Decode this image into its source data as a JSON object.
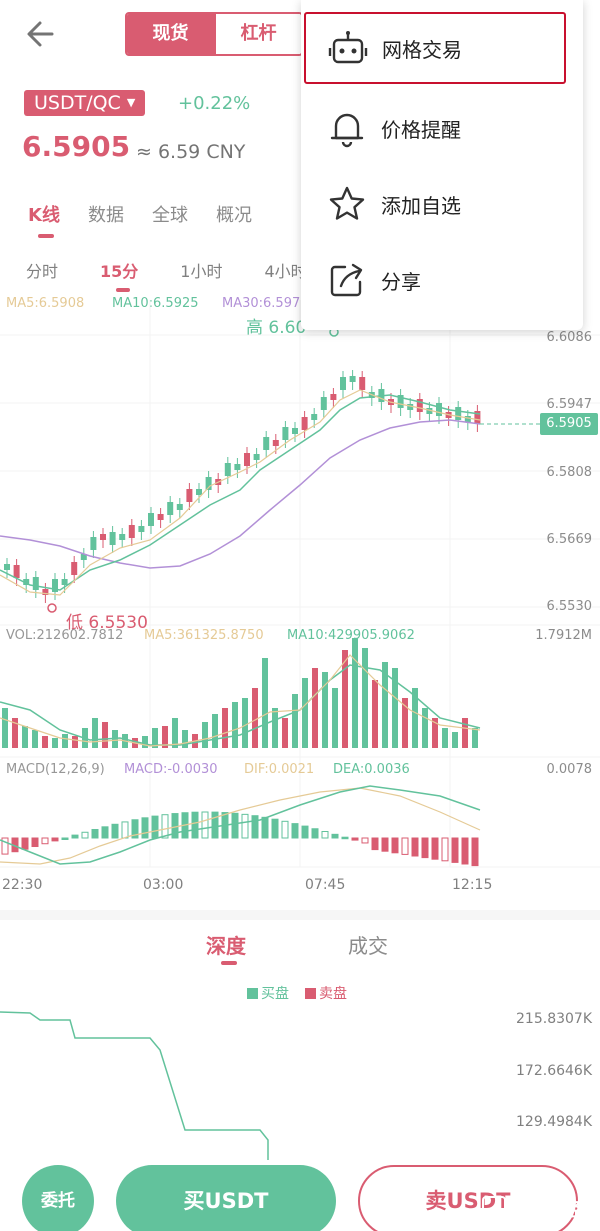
{
  "header": {
    "tabs": [
      "现货",
      "杠杆"
    ],
    "pair": "USDT/QC",
    "change": "+0.22%",
    "price": "6.5905",
    "approx": "≈",
    "cny": "6.59 CNY"
  },
  "main_tabs": [
    "K线",
    "数据",
    "全球",
    "概况"
  ],
  "periods": [
    "分时",
    "15分",
    "1小时",
    "4小时"
  ],
  "ma": {
    "ma5": "MA5:6.5908",
    "ma10": "MA10:6.5925",
    "ma30": "MA30:6.597"
  },
  "price_axis": [
    "6.6086",
    "6.5947",
    "6.5808",
    "6.5669",
    "6.5530"
  ],
  "last_price": "6.5905",
  "high_label": "高 6.60",
  "low_label": "低 6.5530",
  "volume": {
    "vol": "VOL:212602.7812",
    "ma5": "MA5:361325.8750",
    "ma10": "MA10:429905.9062",
    "max": "1.7912M"
  },
  "macd": {
    "title": "MACD(12,26,9)",
    "macd": "MACD:-0.0030",
    "dif": "DIF:0.0021",
    "dea": "DEA:0.0036",
    "max": "0.0078"
  },
  "time_axis": [
    "22:30",
    "03:00",
    "07:45",
    "12:15"
  ],
  "depth_tabs": [
    "深度",
    "成交"
  ],
  "depth_legend": {
    "buy": "买盘",
    "sell": "卖盘"
  },
  "depth_axis": [
    "215.8307K",
    "172.6646K",
    "129.4984K"
  ],
  "bottom": {
    "orders": "委托",
    "buy": "买USDT",
    "sell": "卖USDT"
  },
  "watermark": "金色财经",
  "menu": {
    "items": [
      {
        "label": "网格交易",
        "icon": "robot-icon"
      },
      {
        "label": "价格提醒",
        "icon": "bell-icon"
      },
      {
        "label": "添加自选",
        "icon": "star-icon"
      },
      {
        "label": "分享",
        "icon": "share-icon"
      }
    ]
  },
  "colors": {
    "red": "#c8102e",
    "green": "#19a56d",
    "purple": "#8e5cc4",
    "gold": "#d9b265"
  }
}
